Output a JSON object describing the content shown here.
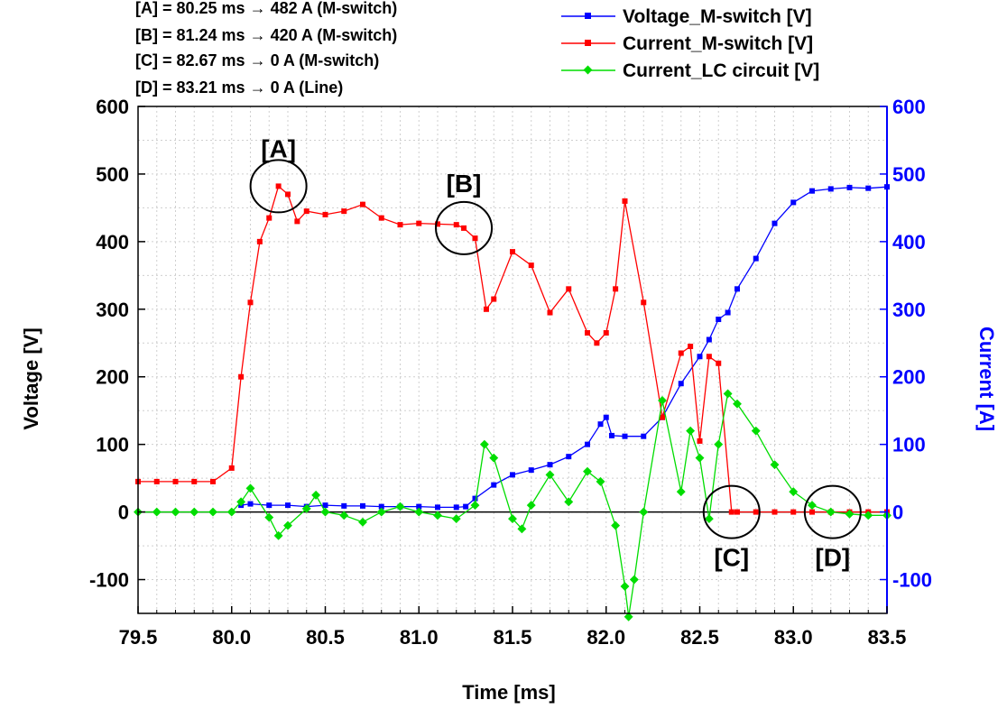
{
  "annotations": [
    "[A] = 80.25 ms → 482 A (M-switch)",
    "[B] = 81.24 ms → 420 A (M-switch)",
    "[C] = 82.67 ms → 0 A (M-switch)",
    "[D] = 83.21 ms → 0 A (Line)"
  ],
  "chart_data": {
    "type": "line",
    "xlabel": "Time [ms]",
    "ylabel": "Voltage [V]",
    "y2label": "Current [A]",
    "xlim": [
      79.5,
      83.5
    ],
    "ylim": [
      -150,
      600
    ],
    "y2lim": [
      -150,
      600
    ],
    "x_ticks": [
      "79.5",
      "80.0",
      "80.5",
      "81.0",
      "81.5",
      "82.0",
      "82.5",
      "83.0",
      "83.5"
    ],
    "y_ticks": [
      "-100",
      "0",
      "100",
      "200",
      "300",
      "400",
      "500",
      "600"
    ],
    "y2_ticks": [
      "-100",
      "0",
      "100",
      "200",
      "300",
      "400",
      "500",
      "600"
    ],
    "legend_position": "top-right",
    "colors": {
      "voltage": "#0000ff",
      "current": "#ff0000",
      "lc": "#00dd00",
      "right_axis": "#0000ff"
    },
    "series": [
      {
        "name": "Voltage_M-switch [V]",
        "color": "#0000ff",
        "marker": "square",
        "x": [
          79.6,
          79.8,
          80.0,
          80.05,
          80.1,
          80.2,
          80.3,
          80.4,
          80.5,
          80.6,
          80.7,
          80.8,
          80.9,
          81.0,
          81.1,
          81.2,
          81.25,
          81.3,
          81.4,
          81.5,
          81.6,
          81.7,
          81.8,
          81.9,
          81.97,
          82.0,
          82.03,
          82.1,
          82.2,
          82.3,
          82.4,
          82.5,
          82.55,
          82.6,
          82.65,
          82.7,
          82.8,
          82.9,
          83.0,
          83.1,
          83.2,
          83.3,
          83.4,
          83.5
        ],
        "y": [
          null,
          null,
          null,
          10,
          12,
          10,
          10,
          8,
          10,
          9,
          9,
          8,
          8,
          8,
          7,
          7,
          8,
          20,
          40,
          55,
          62,
          70,
          82,
          100,
          130,
          140,
          113,
          112,
          112,
          140,
          190,
          230,
          255,
          285,
          295,
          330,
          375,
          427,
          458,
          475,
          478,
          480,
          479,
          481
        ]
      },
      {
        "name": "Current_M-switch [V]",
        "color": "#ff0000",
        "marker": "square",
        "x": [
          79.5,
          79.6,
          79.7,
          79.8,
          79.9,
          80.0,
          80.05,
          80.1,
          80.15,
          80.2,
          80.25,
          80.3,
          80.35,
          80.4,
          80.5,
          80.6,
          80.7,
          80.8,
          80.9,
          81.0,
          81.1,
          81.2,
          81.24,
          81.3,
          81.36,
          81.4,
          81.5,
          81.6,
          81.7,
          81.8,
          81.9,
          81.95,
          82.0,
          82.05,
          82.1,
          82.2,
          82.3,
          82.4,
          82.45,
          82.5,
          82.55,
          82.6,
          82.67,
          82.7,
          82.8,
          82.9,
          83.0,
          83.1,
          83.2,
          83.3,
          83.4,
          83.5
        ],
        "y": [
          45,
          45,
          45,
          45,
          45,
          65,
          200,
          310,
          400,
          435,
          482,
          470,
          430,
          445,
          440,
          445,
          455,
          435,
          425,
          427,
          426,
          425,
          420,
          405,
          300,
          315,
          385,
          365,
          295,
          330,
          265,
          250,
          265,
          330,
          460,
          310,
          140,
          235,
          245,
          105,
          230,
          220,
          0,
          0,
          0,
          0,
          0,
          0,
          0,
          0,
          0,
          0
        ]
      },
      {
        "name": "Current_LC circuit [V]",
        "color": "#00dd00",
        "marker": "diamond",
        "x": [
          79.5,
          79.6,
          79.7,
          79.8,
          79.9,
          80.0,
          80.05,
          80.1,
          80.2,
          80.25,
          80.3,
          80.4,
          80.45,
          80.5,
          80.6,
          80.7,
          80.8,
          80.9,
          81.0,
          81.1,
          81.2,
          81.3,
          81.35,
          81.4,
          81.5,
          81.55,
          81.6,
          81.7,
          81.8,
          81.9,
          81.97,
          82.05,
          82.1,
          82.12,
          82.15,
          82.2,
          82.3,
          82.4,
          82.45,
          82.5,
          82.55,
          82.6,
          82.65,
          82.7,
          82.8,
          82.9,
          83.0,
          83.1,
          83.2,
          83.3,
          83.4,
          83.5
        ],
        "y": [
          0,
          0,
          0,
          0,
          0,
          0,
          15,
          35,
          -8,
          -35,
          -20,
          5,
          25,
          0,
          -5,
          -15,
          0,
          8,
          0,
          -5,
          -10,
          10,
          100,
          80,
          -10,
          -25,
          10,
          55,
          15,
          60,
          45,
          -20,
          -110,
          -155,
          -100,
          0,
          165,
          30,
          120,
          80,
          -10,
          100,
          175,
          160,
          120,
          70,
          30,
          10,
          0,
          -3,
          -5,
          -5
        ]
      }
    ],
    "markers": [
      {
        "label": "[A]",
        "x": 80.25,
        "y": 482
      },
      {
        "label": "[B]",
        "x": 81.24,
        "y": 420
      },
      {
        "label": "[C]",
        "x": 82.67,
        "y": 0
      },
      {
        "label": "[D]",
        "x": 83.21,
        "y": 0
      }
    ]
  }
}
